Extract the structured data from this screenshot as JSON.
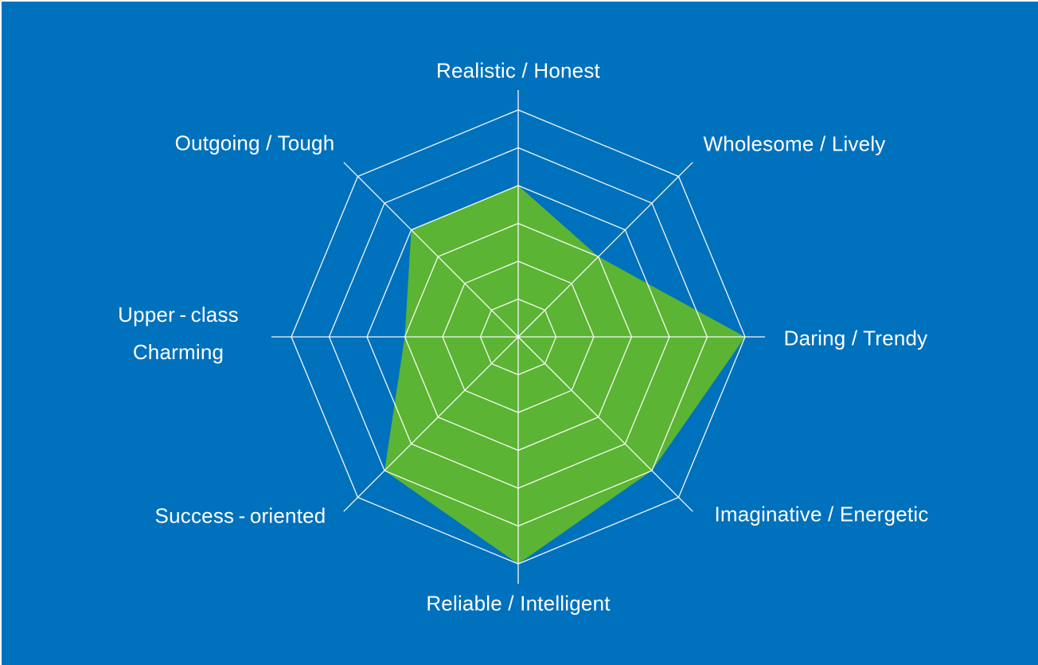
{
  "background_color": "#0071BC",
  "chart_data": {
    "type": "radar",
    "title": "",
    "categories": [
      "Realistic / Honest",
      "Wholesome / Lively",
      "Daring / Trendy",
      "Imaginative / Energetic",
      "Reliable / Intelligent",
      "Success-oriented",
      "Upper-class Charming",
      "Outgoing / Tough"
    ],
    "values": [
      4,
      3,
      6,
      5,
      6,
      5,
      3,
      4
    ],
    "scale_min": 0,
    "scale_max": 6,
    "ring_count": 6,
    "grid_shape": "octagon-web",
    "grid_on": true,
    "legend_position": "none",
    "fill_color": "#5BB434",
    "grid_color": "#FFFFFF",
    "label_color": "#FFFFFF"
  },
  "axis_labels": {
    "realistic": "Realistic / Honest",
    "wholesome": "Wholesome / Lively",
    "daring": "Daring / Trendy",
    "imaginative": "Imaginative / Energetic",
    "reliable": "Reliable / Intelligent",
    "success": "Success - oriented",
    "upper_line1": "Upper - class",
    "upper_line2": "Charming",
    "outgoing": "Outgoing / Tough"
  }
}
